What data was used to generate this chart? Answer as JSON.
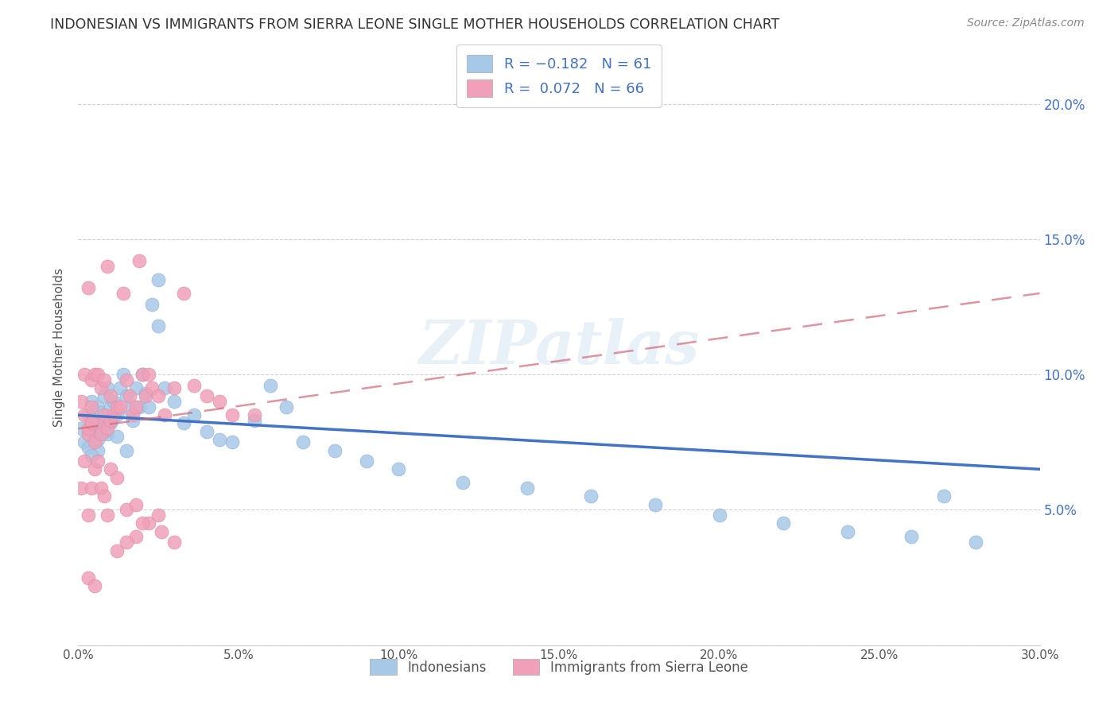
{
  "title": "INDONESIAN VS IMMIGRANTS FROM SIERRA LEONE SINGLE MOTHER HOUSEHOLDS CORRELATION CHART",
  "source": "Source: ZipAtlas.com",
  "xlim": [
    0,
    0.3
  ],
  "ylim": [
    0,
    0.22
  ],
  "indonesian_color": "#a8c8e8",
  "sierraleone_color": "#f0a0b8",
  "trendline_indonesian_color": "#4472c4",
  "trendline_sierraleone_color": "#c0607080",
  "watermark": "ZIPatlas",
  "legend_label_1": "Indonesians",
  "legend_label_2": "Immigrants from Sierra Leone",
  "ylabel": "Single Mother Households",
  "indonesian_R": -0.182,
  "indonesian_N": 61,
  "sierraleone_R": 0.072,
  "sierraleone_N": 66,
  "right_yticks": [
    0.05,
    0.1,
    0.15,
    0.2
  ],
  "xticks": [
    0.0,
    0.05,
    0.1,
    0.15,
    0.2,
    0.25,
    0.3
  ],
  "ind_x": [
    0.001,
    0.002,
    0.003,
    0.004,
    0.005,
    0.005,
    0.006,
    0.006,
    0.007,
    0.007,
    0.008,
    0.008,
    0.009,
    0.009,
    0.01,
    0.01,
    0.011,
    0.012,
    0.013,
    0.014,
    0.015,
    0.016,
    0.017,
    0.018,
    0.019,
    0.02,
    0.021,
    0.022,
    0.023,
    0.025,
    0.027,
    0.03,
    0.033,
    0.036,
    0.04,
    0.044,
    0.048,
    0.055,
    0.06,
    0.065,
    0.07,
    0.08,
    0.09,
    0.1,
    0.12,
    0.14,
    0.16,
    0.18,
    0.2,
    0.22,
    0.24,
    0.26,
    0.27,
    0.28,
    0.003,
    0.004,
    0.006,
    0.008,
    0.012,
    0.015,
    0.025
  ],
  "ind_y": [
    0.08,
    0.075,
    0.085,
    0.09,
    0.082,
    0.078,
    0.088,
    0.072,
    0.086,
    0.08,
    0.092,
    0.083,
    0.095,
    0.078,
    0.088,
    0.082,
    0.09,
    0.085,
    0.095,
    0.1,
    0.092,
    0.087,
    0.083,
    0.095,
    0.088,
    0.1,
    0.093,
    0.088,
    0.126,
    0.118,
    0.095,
    0.09,
    0.082,
    0.085,
    0.079,
    0.076,
    0.075,
    0.083,
    0.096,
    0.088,
    0.075,
    0.072,
    0.068,
    0.065,
    0.06,
    0.058,
    0.055,
    0.052,
    0.048,
    0.045,
    0.042,
    0.04,
    0.055,
    0.038,
    0.073,
    0.07,
    0.076,
    0.079,
    0.077,
    0.072,
    0.135
  ],
  "sl_x": [
    0.001,
    0.002,
    0.002,
    0.003,
    0.003,
    0.004,
    0.004,
    0.005,
    0.005,
    0.006,
    0.006,
    0.007,
    0.007,
    0.008,
    0.008,
    0.009,
    0.009,
    0.01,
    0.01,
    0.011,
    0.012,
    0.013,
    0.014,
    0.015,
    0.016,
    0.017,
    0.018,
    0.019,
    0.02,
    0.021,
    0.022,
    0.023,
    0.025,
    0.027,
    0.03,
    0.033,
    0.036,
    0.04,
    0.044,
    0.048,
    0.055,
    0.001,
    0.002,
    0.003,
    0.004,
    0.005,
    0.006,
    0.007,
    0.008,
    0.009,
    0.01,
    0.012,
    0.015,
    0.018,
    0.022,
    0.026,
    0.03,
    0.003,
    0.005,
    0.003,
    0.004,
    0.025,
    0.02,
    0.018,
    0.015,
    0.012
  ],
  "sl_y": [
    0.09,
    0.085,
    0.1,
    0.132,
    0.078,
    0.088,
    0.098,
    0.1,
    0.075,
    0.1,
    0.082,
    0.095,
    0.078,
    0.098,
    0.085,
    0.14,
    0.08,
    0.083,
    0.092,
    0.085,
    0.088,
    0.088,
    0.13,
    0.098,
    0.092,
    0.085,
    0.088,
    0.142,
    0.1,
    0.092,
    0.1,
    0.095,
    0.092,
    0.085,
    0.095,
    0.13,
    0.096,
    0.092,
    0.09,
    0.085,
    0.085,
    0.058,
    0.068,
    0.048,
    0.058,
    0.065,
    0.068,
    0.058,
    0.055,
    0.048,
    0.065,
    0.062,
    0.05,
    0.052,
    0.045,
    0.042,
    0.038,
    0.025,
    0.022,
    0.08,
    0.082,
    0.048,
    0.045,
    0.04,
    0.038,
    0.035
  ]
}
